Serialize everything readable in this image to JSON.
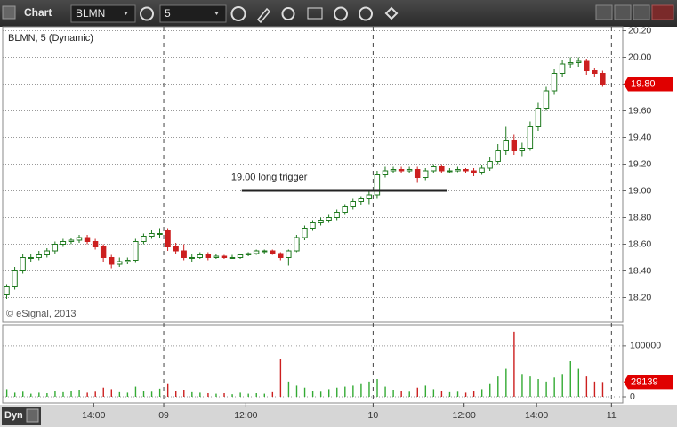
{
  "ui": {
    "window_title": "Chart",
    "symbol": "BLMN",
    "interval": "5",
    "legend": "BLMN, 5 (Dynamic)",
    "copyright": "© eSignal, 2013",
    "mode_button": "Dyn"
  },
  "chart_data": [
    {
      "type": "candlestick",
      "xlim": [
        0,
        77
      ],
      "xticks": [
        {
          "value": 11.3,
          "label": "14:00"
        },
        {
          "value": 20,
          "label": "09"
        },
        {
          "value": 30.2,
          "label": "12:00"
        },
        {
          "value": 46,
          "label": "10"
        },
        {
          "value": 57.3,
          "label": "12:00"
        },
        {
          "value": 66.3,
          "label": "14:00"
        },
        {
          "value": 75.6,
          "label": "11"
        }
      ],
      "day_breaks": [
        20,
        46,
        75.6
      ],
      "ylim": [
        18.03,
        20.23
      ],
      "yticks": [
        {
          "value": 18.2,
          "label": "18.20"
        },
        {
          "value": 18.4,
          "label": "18.40"
        },
        {
          "value": 18.6,
          "label": "18.60"
        },
        {
          "value": 18.8,
          "label": "18.80"
        },
        {
          "value": 19,
          "label": "19.00"
        },
        {
          "value": 19.2,
          "label": "19.20"
        },
        {
          "value": 19.4,
          "label": "19.40"
        },
        {
          "value": 19.6,
          "label": "19.60"
        },
        {
          "value": 19.8,
          "label": "19.80"
        },
        {
          "value": 20,
          "label": "20.00"
        },
        {
          "value": 20.2,
          "label": "20.20"
        }
      ],
      "grid": true,
      "up_color": "#1f7a1f",
      "down_color": "#cc1f1f",
      "open": [
        18.22,
        18.28,
        18.4,
        18.5,
        18.5,
        18.52,
        18.55,
        18.6,
        18.62,
        18.63,
        18.65,
        18.62,
        18.58,
        18.5,
        18.45,
        18.47,
        18.48,
        18.62,
        18.66,
        18.68,
        18.7,
        18.58,
        18.55,
        18.5,
        18.5,
        18.52,
        18.5,
        18.51,
        18.5,
        18.5,
        18.52,
        18.53,
        18.55,
        18.55,
        18.53,
        18.5,
        18.55,
        18.65,
        18.72,
        18.76,
        18.78,
        18.8,
        18.84,
        18.88,
        18.92,
        18.94,
        18.97,
        19.12,
        19.15,
        19.16,
        19.15,
        19.16,
        19.1,
        19.15,
        19.18,
        19.15,
        19.15,
        19.16,
        19.15,
        19.14,
        19.17,
        19.22,
        19.3,
        19.38,
        19.3,
        19.32,
        19.48,
        19.62,
        19.75,
        19.88,
        19.95,
        19.96,
        19.97,
        19.9,
        19.88
      ],
      "high": [
        18.3,
        18.43,
        18.53,
        18.53,
        18.55,
        18.57,
        18.62,
        18.64,
        18.65,
        18.67,
        18.67,
        18.64,
        18.6,
        18.52,
        18.5,
        18.5,
        18.64,
        18.68,
        18.71,
        18.72,
        18.72,
        18.61,
        18.6,
        18.53,
        18.54,
        18.54,
        18.53,
        18.52,
        18.52,
        18.53,
        18.54,
        18.56,
        18.56,
        18.56,
        18.54,
        18.56,
        18.67,
        18.74,
        18.78,
        18.8,
        18.82,
        18.86,
        18.9,
        18.94,
        18.96,
        19.0,
        19.15,
        19.18,
        19.18,
        19.18,
        19.18,
        19.18,
        19.17,
        19.2,
        19.2,
        19.17,
        19.18,
        19.17,
        19.17,
        19.19,
        19.25,
        19.35,
        19.48,
        19.42,
        19.36,
        19.52,
        19.66,
        19.78,
        19.91,
        19.98,
        20.0,
        20.0,
        19.99,
        19.92,
        19.9
      ],
      "low": [
        18.19,
        18.26,
        18.38,
        18.47,
        18.48,
        18.5,
        18.53,
        18.58,
        18.6,
        18.61,
        18.6,
        18.56,
        18.47,
        18.42,
        18.43,
        18.45,
        18.46,
        18.6,
        18.64,
        18.65,
        18.55,
        18.53,
        18.48,
        18.47,
        18.49,
        18.48,
        18.49,
        18.49,
        18.49,
        18.49,
        18.51,
        18.52,
        18.53,
        18.52,
        18.48,
        18.44,
        18.54,
        18.63,
        18.7,
        18.74,
        18.76,
        18.78,
        18.82,
        18.86,
        18.89,
        18.9,
        18.94,
        19.1,
        19.13,
        19.13,
        19.13,
        19.06,
        19.08,
        19.13,
        19.13,
        19.13,
        19.14,
        19.13,
        19.11,
        19.12,
        19.15,
        19.2,
        19.27,
        19.27,
        19.26,
        19.3,
        19.45,
        19.6,
        19.72,
        19.85,
        19.92,
        19.93,
        19.87,
        19.85,
        19.78
      ],
      "close": [
        18.28,
        18.4,
        18.5,
        18.5,
        18.52,
        18.55,
        18.6,
        18.62,
        18.63,
        18.65,
        18.62,
        18.58,
        18.5,
        18.45,
        18.47,
        18.48,
        18.62,
        18.66,
        18.68,
        18.68,
        18.58,
        18.55,
        18.5,
        18.5,
        18.52,
        18.5,
        18.51,
        18.5,
        18.5,
        18.52,
        18.53,
        18.55,
        18.55,
        18.53,
        18.5,
        18.55,
        18.65,
        18.72,
        18.76,
        18.78,
        18.8,
        18.84,
        18.88,
        18.92,
        18.94,
        18.97,
        19.12,
        19.15,
        19.16,
        19.15,
        19.16,
        19.1,
        19.15,
        19.18,
        19.15,
        19.15,
        19.16,
        19.15,
        19.14,
        19.17,
        19.22,
        19.3,
        19.38,
        19.3,
        19.32,
        19.48,
        19.62,
        19.75,
        19.88,
        19.95,
        19.96,
        19.97,
        19.9,
        19.88,
        19.8
      ],
      "price_marker": {
        "value": 19.8,
        "label": "19.80",
        "color": "#e00000"
      },
      "annotation": {
        "text": "19.00 long trigger",
        "level": 19,
        "x_range": [
          29.7,
          55.2
        ]
      }
    },
    {
      "type": "bar",
      "xlim": [
        0,
        77
      ],
      "ylim": [
        0,
        140000
      ],
      "yticks": [
        0,
        100000
      ],
      "grid": true,
      "up_color": "#33aa33",
      "down_color": "#cc1f1f",
      "values": [
        15000,
        8000,
        10000,
        6000,
        8000,
        7000,
        12000,
        9000,
        11000,
        14000,
        8000,
        10000,
        18000,
        15000,
        9000,
        8000,
        20000,
        12000,
        10000,
        16000,
        25000,
        12000,
        14000,
        9000,
        8000,
        7000,
        6000,
        7000,
        5000,
        8000,
        6000,
        7000,
        6000,
        9000,
        75000,
        30000,
        22000,
        18000,
        12000,
        10000,
        15000,
        18000,
        20000,
        22000,
        25000,
        30000,
        35000,
        20000,
        14000,
        12000,
        10000,
        18000,
        22000,
        15000,
        12000,
        9000,
        10000,
        8000,
        12000,
        15000,
        25000,
        40000,
        55000,
        128000,
        45000,
        40000,
        35000,
        30000,
        38000,
        45000,
        70000,
        55000,
        40000,
        30000,
        29139
      ],
      "marker_color": "#e00000"
    }
  ]
}
